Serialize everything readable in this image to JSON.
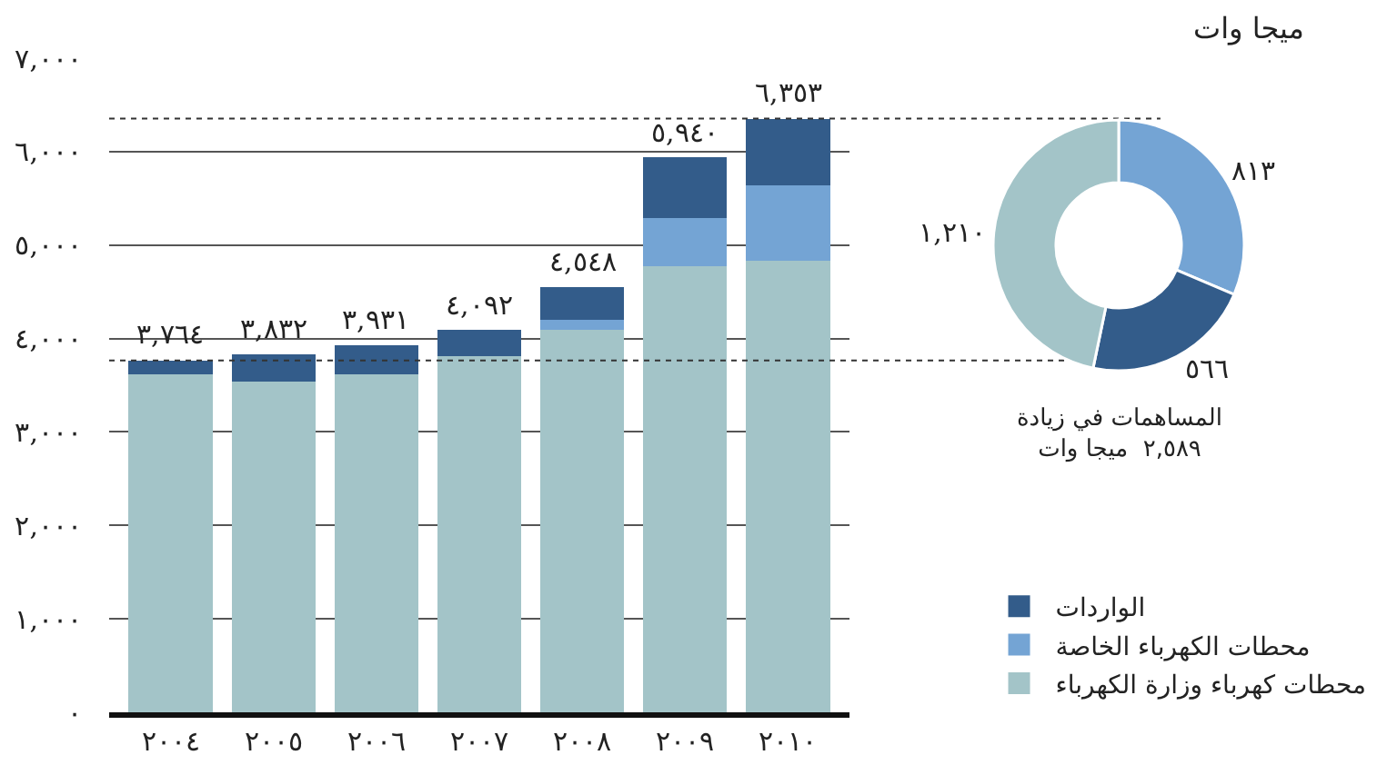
{
  "chart_data": [
    {
      "type": "bar",
      "stacked": true,
      "ylabel": "ميجا وات",
      "categories": [
        "٢٠٠٤",
        "٢٠٠٥",
        "٢٠٠٦",
        "٢٠٠٧",
        "٢٠٠٨",
        "٢٠٠٩",
        "٢٠١٠"
      ],
      "series": [
        {
          "name": "محطات كهرباء وزارة الكهرباء",
          "color": "#a3c4c8",
          "values": [
            3620,
            3540,
            3620,
            3810,
            4090,
            4770,
            4830
          ]
        },
        {
          "name": "محطات الكهرباء الخاصة",
          "color": "#74a4d4",
          "values": [
            0,
            0,
            0,
            0,
            110,
            520,
            813
          ]
        },
        {
          "name": "الواردات",
          "color": "#335c8a",
          "values": [
            144,
            292,
            311,
            282,
            348,
            650,
            710
          ]
        }
      ],
      "totals": [
        "٣,٧٦٤",
        "٣,٨٣٢",
        "٣,٩٣١",
        "٤,٠٩٢",
        "٤,٥٤٨",
        "٥,٩٤٠",
        "٦,٣٥٣"
      ],
      "ylim": [
        0,
        7000
      ],
      "yticks": [
        {
          "value": 0,
          "label": "٠"
        },
        {
          "value": 1000,
          "label": "١,٠٠٠"
        },
        {
          "value": 2000,
          "label": "٢,٠٠٠"
        },
        {
          "value": 3000,
          "label": "٣,٠٠٠"
        },
        {
          "value": 4000,
          "label": "٤,٠٠٠"
        },
        {
          "value": 5000,
          "label": "٥,٠٠٠"
        },
        {
          "value": 6000,
          "label": "٦,٠٠٠"
        },
        {
          "value": 7000,
          "label": "٧,٠٠٠"
        }
      ],
      "grid": "y",
      "legend": "bottom right",
      "ref_lines": [
        {
          "axis": "y",
          "value": 3764,
          "line_style": "dotted"
        },
        {
          "axis": "y",
          "value": 6353,
          "line_style": "dotted"
        }
      ]
    },
    {
      "type": "donut",
      "title": "المساهمات في زيادة\n٢,٥٨٩  ميجا وات",
      "categories": [
        null,
        null,
        null
      ],
      "values": [
        813,
        566,
        1210
      ],
      "value_labels": [
        "٨١٣",
        "٥٦٦",
        "١,٢١٠"
      ],
      "colors": [
        "#74a4d4",
        "#335c8a",
        "#a3c4c8"
      ]
    }
  ]
}
